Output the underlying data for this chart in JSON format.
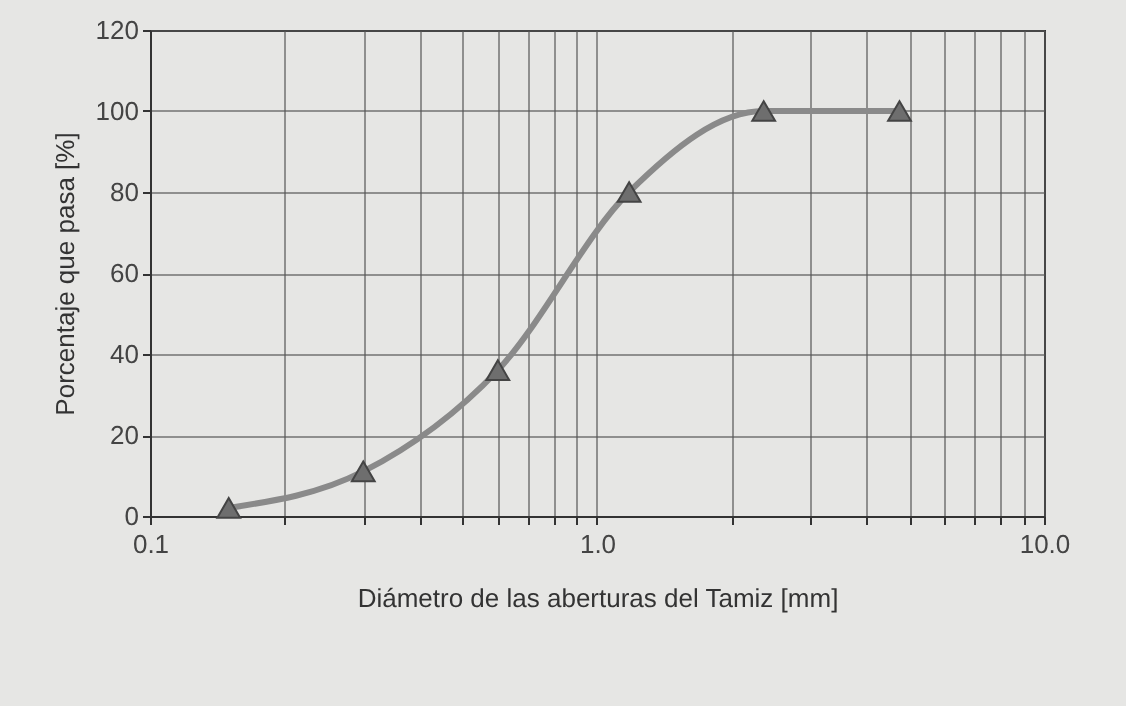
{
  "chart_data": {
    "type": "line",
    "xlabel": "Diámetro de las aberturas del Tamiz [mm]",
    "ylabel": "Porcentaje que pasa [%]",
    "x": [
      0.15,
      0.3,
      0.6,
      1.18,
      2.36,
      4.75
    ],
    "series": [
      {
        "color": "#8a8a8a",
        "values": [
          2,
          11,
          36,
          80,
          100,
          100
        ]
      }
    ],
    "log": "x",
    "grid": true,
    "marker": "triangle",
    "line_style": "solid",
    "xlim": [
      0.1,
      10
    ],
    "ylim": [
      0,
      120
    ],
    "xticks": [
      0.1,
      {
        "value": 0.2,
        "label": null
      },
      {
        "value": 0.3,
        "label": null
      },
      {
        "value": 0.4,
        "label": null
      },
      {
        "value": 0.5,
        "label": null
      },
      {
        "value": 0.6,
        "label": null
      },
      {
        "value": 0.7,
        "label": null
      },
      {
        "value": 0.8,
        "label": null
      },
      {
        "value": 0.9,
        "label": null
      },
      {
        "value": 1,
        "label": "1.0"
      },
      {
        "value": 2,
        "label": null
      },
      {
        "value": 3,
        "label": null
      },
      {
        "value": 4,
        "label": null
      },
      {
        "value": 5,
        "label": null
      },
      {
        "value": 6,
        "label": null
      },
      {
        "value": 7,
        "label": null
      },
      {
        "value": 8,
        "label": null
      },
      {
        "value": 9,
        "label": null
      },
      {
        "value": 10,
        "label": "10.0"
      }
    ],
    "yticks": [
      0,
      20,
      40,
      60,
      80,
      100,
      120
    ]
  }
}
